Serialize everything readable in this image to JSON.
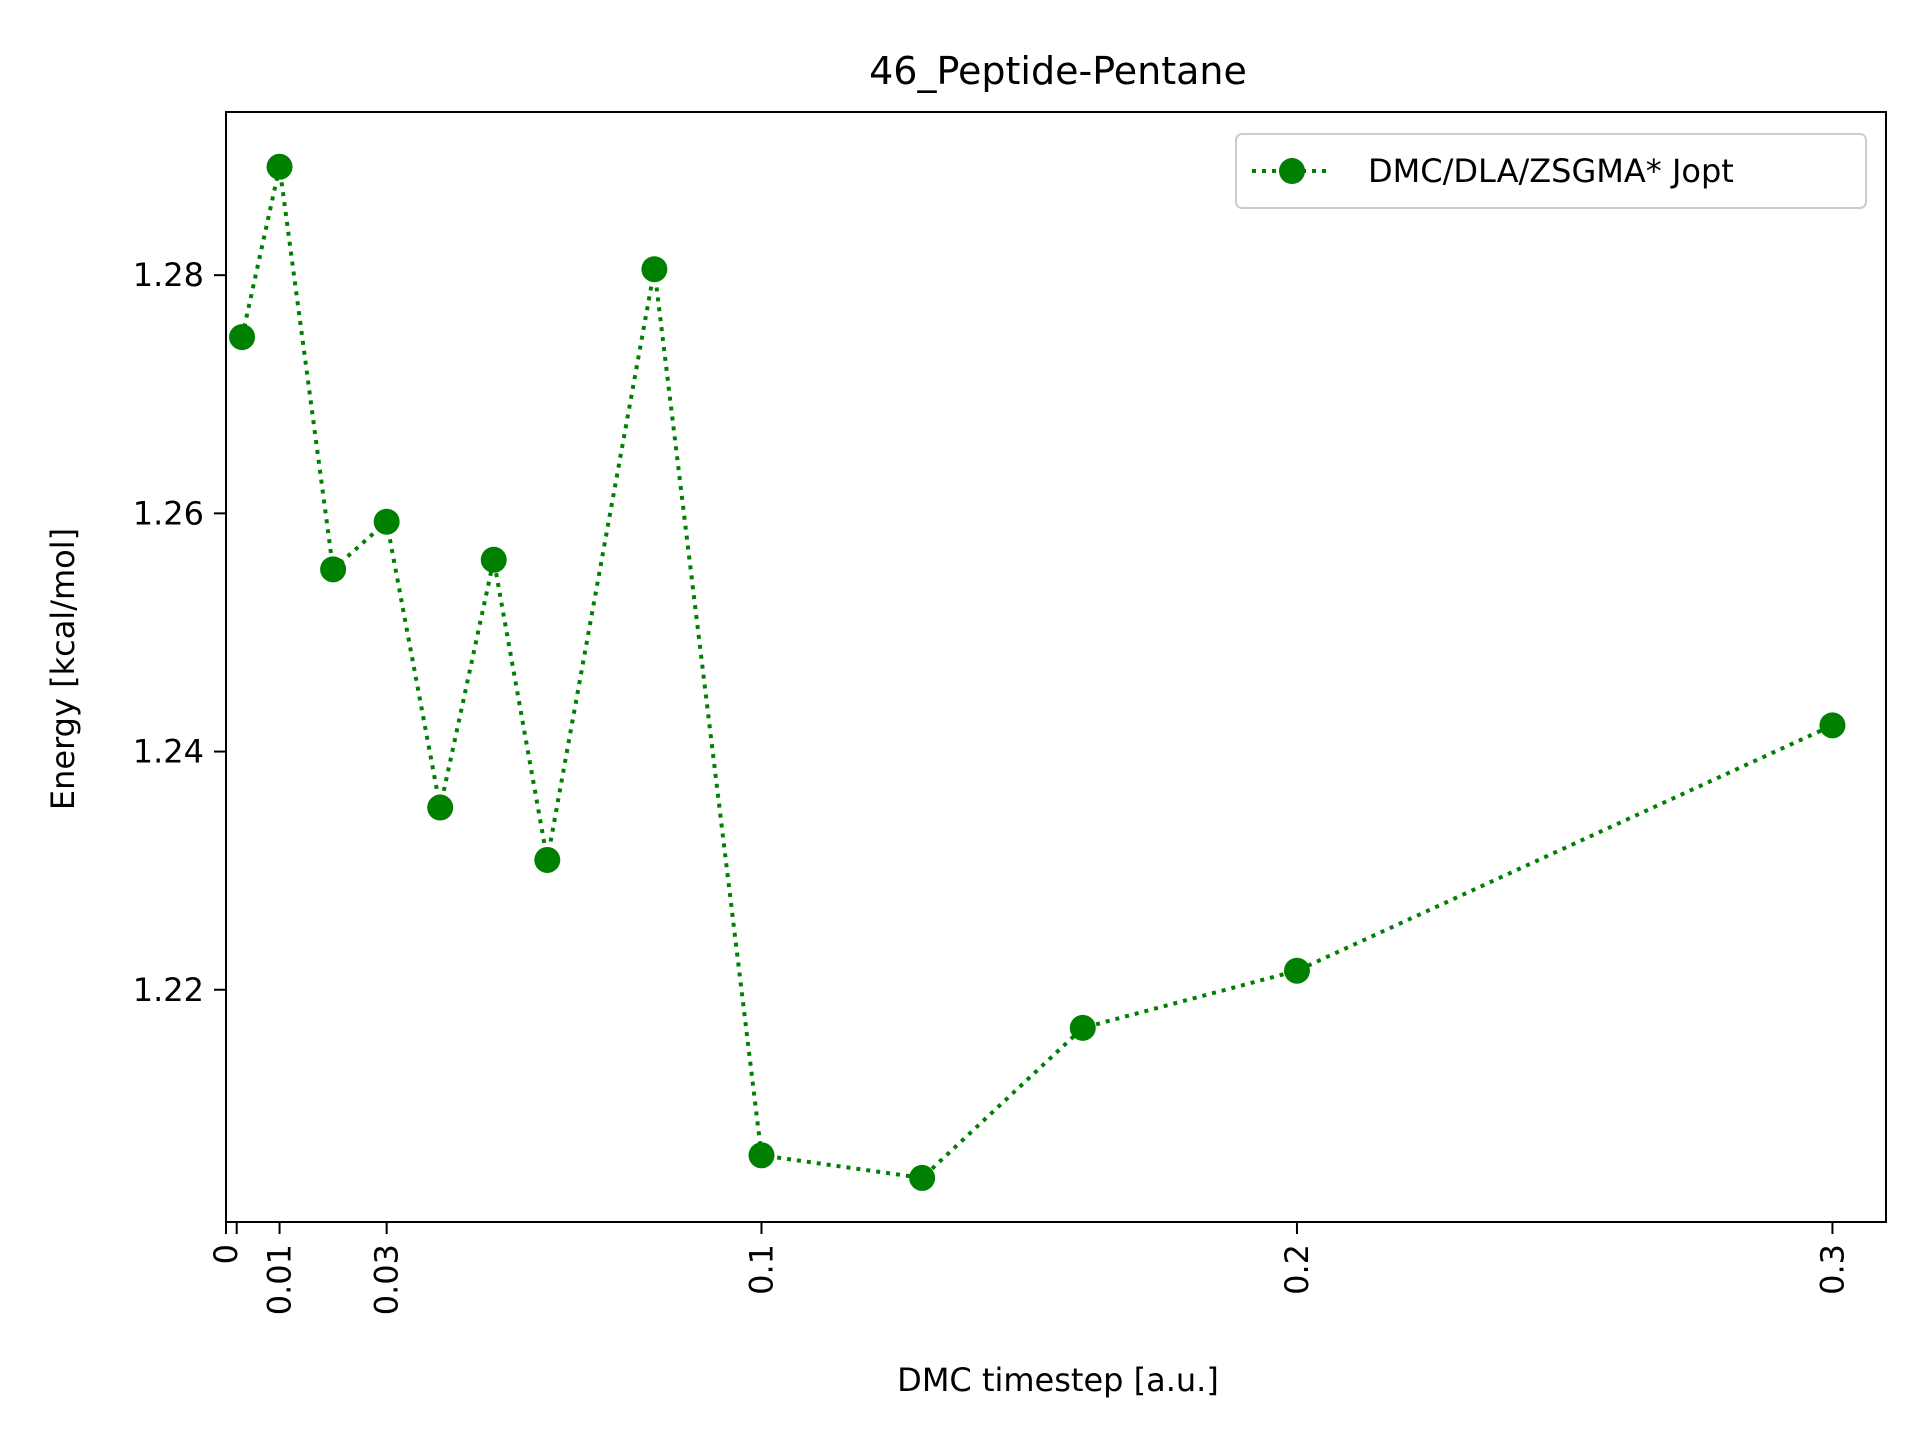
{
  "chart_data": {
    "type": "line",
    "title": "46_Peptide-Pentane",
    "xlabel": "DMC timestep [a.u.]",
    "ylabel": "Energy [kcal/mol]",
    "x_ticks": [
      0,
      0.002,
      0.01,
      0.03,
      0.1,
      0.2,
      0.3
    ],
    "x_tick_labels": [
      "0",
      "",
      "0.01",
      "0.03",
      "0.1",
      "0.2",
      "0.3"
    ],
    "y_ticks": [
      1.22,
      1.24,
      1.26,
      1.28
    ],
    "y_tick_labels": [
      "1.22",
      "1.24",
      "1.26",
      "1.28"
    ],
    "xlim": [
      0,
      0.31
    ],
    "ylim": [
      1.2005,
      1.2937
    ],
    "grid": false,
    "legend_position": "top-right",
    "series": [
      {
        "name": "DMC/DLA/ZSGMA* Jopt",
        "color": "#008000",
        "line_style": "dotted",
        "marker": "circle",
        "x": [
          0.003,
          0.01,
          0.02,
          0.03,
          0.04,
          0.05,
          0.06,
          0.08,
          0.1,
          0.13,
          0.16,
          0.2,
          0.3
        ],
        "y": [
          1.2748,
          1.2891,
          1.2553,
          1.2593,
          1.2353,
          1.2561,
          1.2309,
          1.2805,
          1.2061,
          1.2042,
          1.2168,
          1.2216,
          1.2422
        ]
      }
    ]
  }
}
